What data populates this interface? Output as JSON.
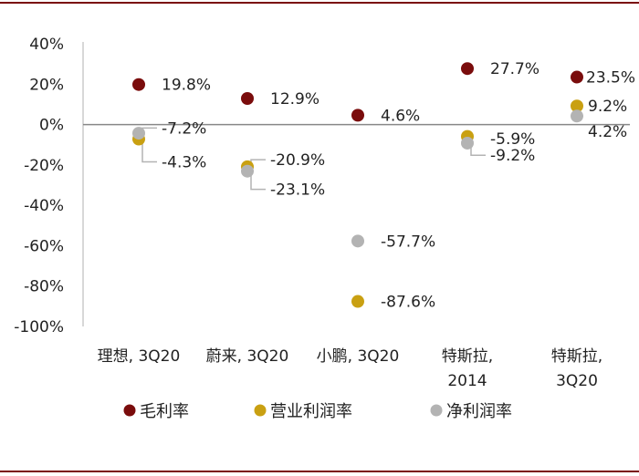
{
  "chart_data": {
    "type": "scatter",
    "categories": [
      [
        "理想, 3Q20"
      ],
      [
        "蔚来, 3Q20"
      ],
      [
        "小鹏, 3Q20"
      ],
      [
        "特斯拉,",
        "2014"
      ],
      [
        "特斯拉,",
        "3Q20"
      ]
    ],
    "y_ticks": [
      "40%",
      "20%",
      "0%",
      "-20%",
      "-40%",
      "-60%",
      "-80%",
      "-100%"
    ],
    "ylim": [
      -100,
      40
    ],
    "unit": "%",
    "series": [
      {
        "name": "毛利率",
        "color": "#7a0c0c",
        "values": [
          19.8,
          12.9,
          4.6,
          27.7,
          23.5
        ],
        "labels": [
          "19.8%",
          "12.9%",
          "4.6%",
          "27.7%",
          "23.5%"
        ]
      },
      {
        "name": "营业利润率",
        "color": "#c9a012",
        "values": [
          -7.2,
          -20.9,
          -87.6,
          -5.9,
          9.2
        ],
        "labels": [
          "-7.2%",
          "-20.9%",
          "-87.6%",
          "-5.9%",
          "9.2%"
        ]
      },
      {
        "name": "净利润率",
        "color": "#b3b3b3",
        "values": [
          -4.3,
          -23.1,
          -57.7,
          -9.2,
          4.2
        ],
        "labels": [
          "-4.3%",
          "-23.1%",
          "-57.7%",
          "-9.2%",
          "4.2%"
        ]
      }
    ],
    "legend_position": "bottom",
    "grid": false
  }
}
